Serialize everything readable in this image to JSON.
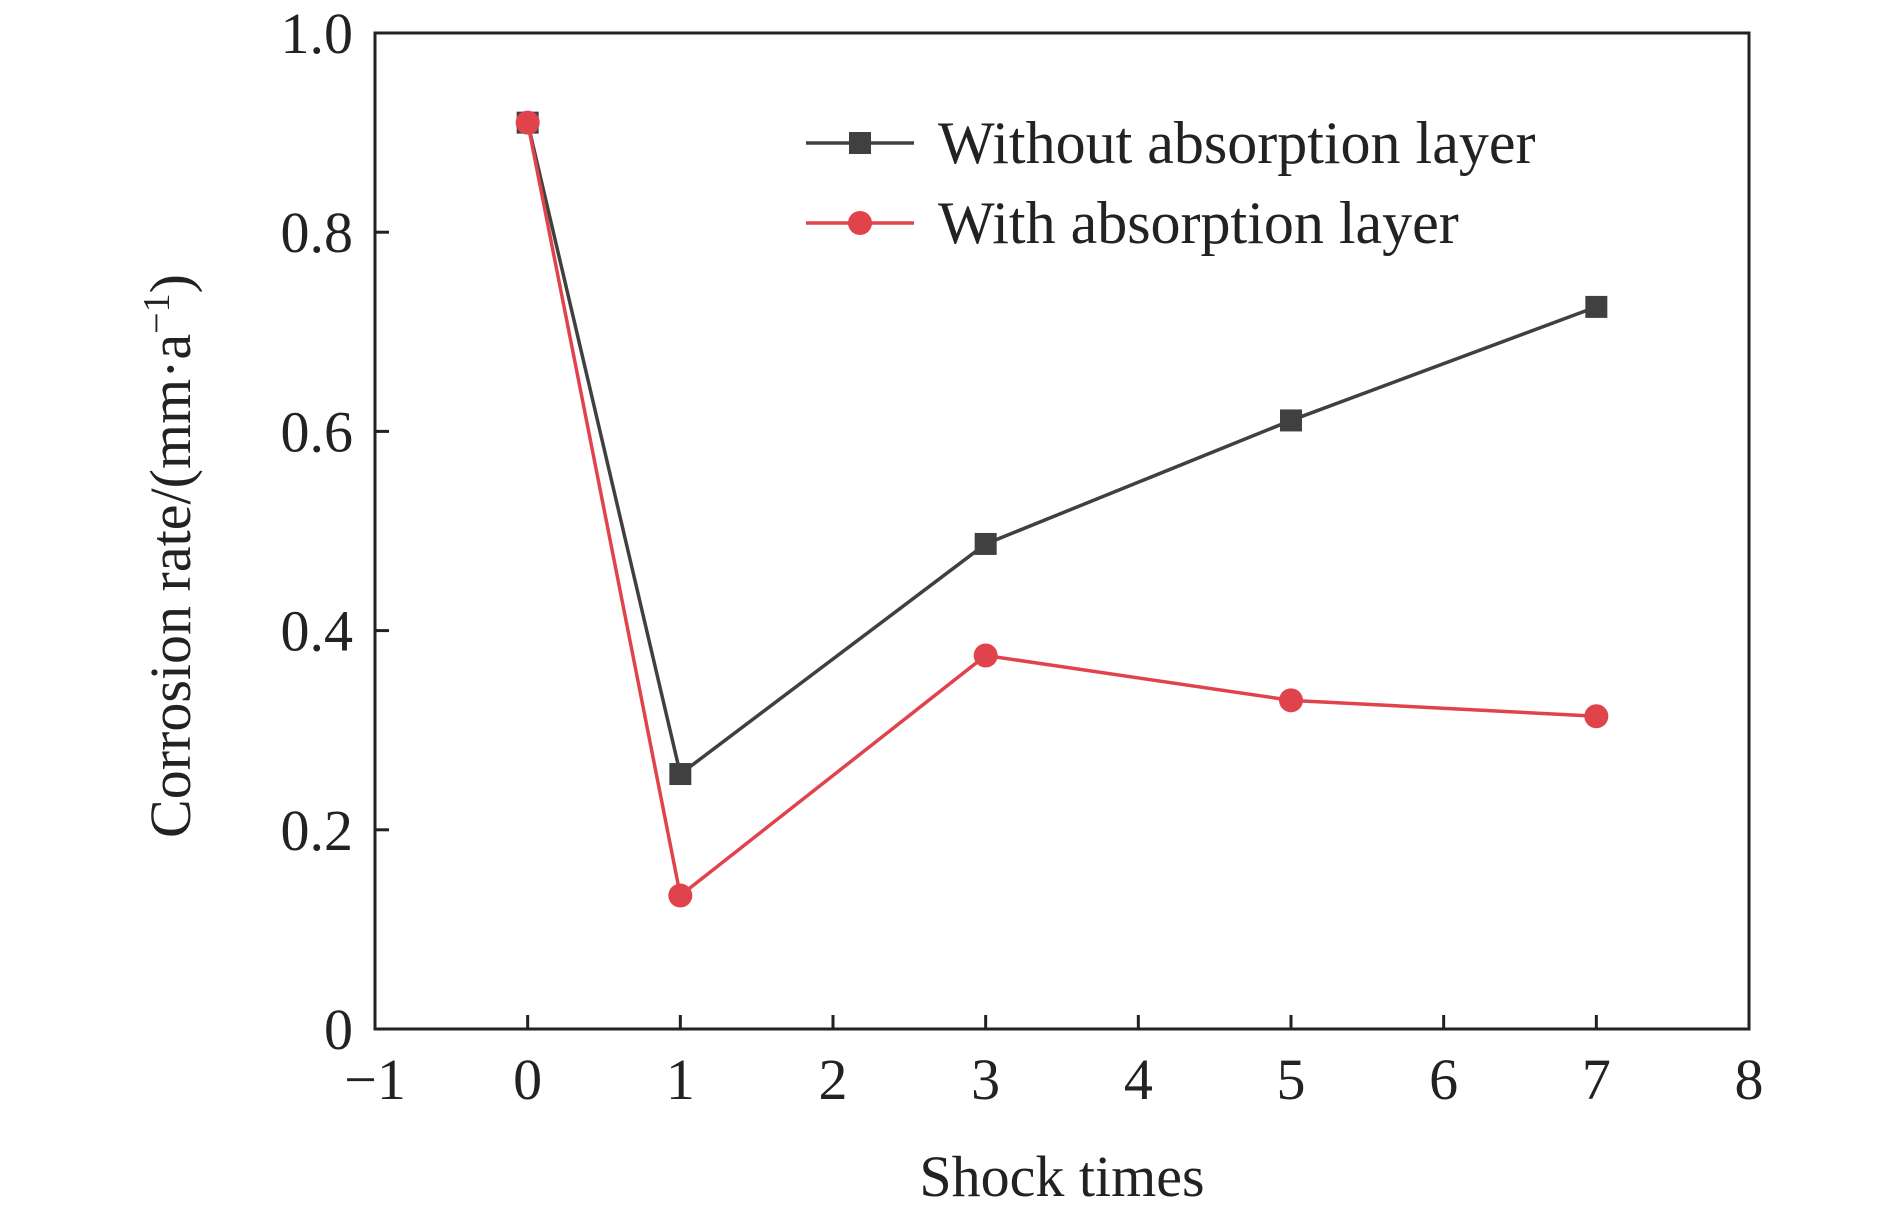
{
  "chart_data": {
    "type": "line",
    "title": "",
    "xlabel": "Shock times",
    "ylabel": "Corrosion rate/(mm·a",
    "ylabel_sup": "−1",
    "ylabel_close": ")",
    "xlim": [
      -1,
      8
    ],
    "ylim": [
      0,
      1.0
    ],
    "xticks": [
      -1,
      0,
      1,
      2,
      3,
      4,
      5,
      6,
      7,
      8
    ],
    "xtick_labels": [
      "−1",
      "0",
      "1",
      "2",
      "3",
      "4",
      "5",
      "6",
      "7",
      "8"
    ],
    "yticks": [
      0,
      0.2,
      0.4,
      0.6,
      0.8,
      1.0
    ],
    "ytick_labels": [
      "0",
      "0.2",
      "0.4",
      "0.6",
      "0.8",
      "1.0"
    ],
    "grid": false,
    "legend_position": "top-right",
    "series": [
      {
        "name": "Without absorption layer",
        "marker": "square",
        "color": "#404040",
        "x": [
          0,
          1,
          3,
          5,
          7
        ],
        "y": [
          0.91,
          0.256,
          0.487,
          0.611,
          0.725
        ]
      },
      {
        "name": "With absorption layer",
        "marker": "circle",
        "color": "#E0434B",
        "x": [
          0,
          1,
          3,
          5,
          7
        ],
        "y": [
          0.91,
          0.134,
          0.375,
          0.33,
          0.314
        ]
      }
    ]
  }
}
